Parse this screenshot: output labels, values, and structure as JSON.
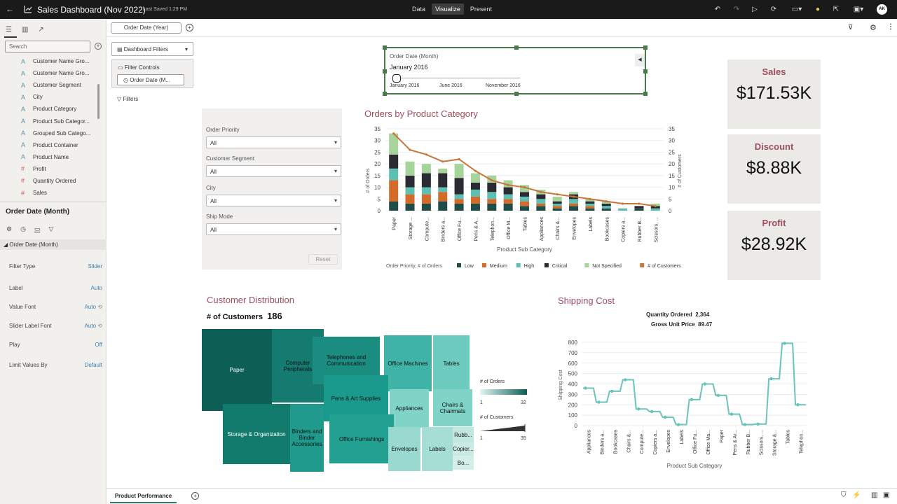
{
  "app": {
    "title": "Sales Dashboard (Nov 2022)",
    "saved": "Last Saved 1:29 PM",
    "modes": [
      "Data",
      "Visualize",
      "Present"
    ],
    "active_mode": "Visualize",
    "user_initials": "AK"
  },
  "left_panel": {
    "search_placeholder": "Search",
    "fields": [
      {
        "type": "A",
        "name": "Customer Name Gro..."
      },
      {
        "type": "A",
        "name": "Customer Name Gro..."
      },
      {
        "type": "A",
        "name": "Customer Segment"
      },
      {
        "type": "A",
        "name": "City"
      },
      {
        "type": "A",
        "name": "Product Category"
      },
      {
        "type": "A",
        "name": "Product Sub Categor..."
      },
      {
        "type": "A",
        "name": "Grouped Sub Catego..."
      },
      {
        "type": "A",
        "name": "Product Container"
      },
      {
        "type": "A",
        "name": "Product Name"
      },
      {
        "type": "#",
        "name": "Profit"
      },
      {
        "type": "#",
        "name": "Quantity Ordered"
      },
      {
        "type": "#",
        "name": "Sales"
      }
    ],
    "properties": {
      "title": "Order Date (Month)",
      "section": "Order Date (Month)",
      "rows": [
        {
          "label": "Filter Type",
          "value": "Slider"
        },
        {
          "label": "Label",
          "value": "Auto"
        },
        {
          "label": "Value Font",
          "value": "Auto"
        },
        {
          "label": "Slider Label Font",
          "value": "Auto"
        },
        {
          "label": "Play",
          "value": "Off"
        },
        {
          "label": "Limit Values By",
          "value": "Default"
        }
      ]
    }
  },
  "canvas": {
    "date_filter": "Order Date (Year)",
    "dashboard_filters": "Dashboard Filters",
    "filter_controls": "Filter Controls",
    "filter_control_item": "Order Date (M...",
    "filters_label": "Filters"
  },
  "slider": {
    "label": "Order Date (Month)",
    "value": "January 2016",
    "ticks": [
      "January 2016",
      "June 2016",
      "November 2016"
    ],
    "position": 0
  },
  "filter_panel": {
    "items": [
      {
        "label": "Order Priority",
        "value": "All"
      },
      {
        "label": "Customer Segment",
        "value": "All"
      },
      {
        "label": "City",
        "value": "All"
      },
      {
        "label": "Ship Mode",
        "value": "All"
      }
    ],
    "reset": "Reset"
  },
  "orders_chart": {
    "title": "Orders by Product Category"
  },
  "kpis": [
    {
      "label": "Sales",
      "value": "$171.53K"
    },
    {
      "label": "Discount",
      "value": "$8.88K"
    },
    {
      "label": "Profit",
      "value": "$28.92K"
    }
  ],
  "customer_distribution": {
    "title": "Customer Distribution",
    "count_label": "# of Customers",
    "count_value": "186",
    "legend": {
      "orders_label": "# of Orders",
      "orders_min": "1",
      "orders_max": "32",
      "customers_label": "# of Customers",
      "customers_min": "1",
      "customers_max": "35"
    },
    "tiles": [
      "Paper",
      "Computer Peripherals",
      "Telephones and Communication",
      "Office Machines",
      "Tables",
      "Pens & Art Supplies",
      "Appliances",
      "Chairs & Chairmats",
      "Storage & Organization",
      "Binders and Binder Accessories",
      "Office Furnishings",
      "Envelopes",
      "Labels",
      "Rubb...",
      "Copier...",
      "Bo..."
    ]
  },
  "shipping": {
    "title": "Shipping Cost",
    "quantity_label": "Quantity Ordered",
    "quantity_value": "2,364",
    "price_label": "Gross Unit Price",
    "price_value": "89.47"
  },
  "bottom": {
    "tab": "Product Performance"
  },
  "chart_data": [
    {
      "type": "bar",
      "title": "Orders by Product Category",
      "xlabel": "Product Sub Category",
      "ylabel": "# of Orders",
      "y2label": "# of Customers",
      "ylim": [
        0,
        35
      ],
      "yticks": [
        0,
        5,
        10,
        15,
        20,
        25,
        30,
        35
      ],
      "categories": [
        "Paper",
        "Storage ...",
        "Compute...",
        "Binders a...",
        "Office Fu...",
        "Pens & A...",
        "Telephon...",
        "Office M...",
        "Tables",
        "Appliances",
        "Chairs &...",
        "Envelopes",
        "Labels",
        "Bookcases",
        "Copiers a...",
        "Rubber B...",
        "Scissors, ..."
      ],
      "legend_title": "Order Priority, # of Orders",
      "series": [
        {
          "name": "Low",
          "color": "#1f4e4a",
          "values": [
            4,
            3,
            3,
            4,
            3,
            3,
            3,
            3,
            2,
            2,
            1,
            2,
            1,
            1,
            0,
            1,
            0
          ]
        },
        {
          "name": "Medium",
          "color": "#d36b2a",
          "values": [
            9,
            4,
            4,
            4,
            2,
            3,
            2,
            2,
            2,
            1,
            1,
            1,
            1,
            0,
            0,
            0,
            0
          ]
        },
        {
          "name": "High",
          "color": "#5ec0b3",
          "values": [
            5,
            3,
            3,
            2,
            2,
            3,
            3,
            2,
            2,
            2,
            1,
            2,
            1,
            1,
            1,
            0,
            1
          ]
        },
        {
          "name": "Critical",
          "color": "#2b2b33",
          "values": [
            6,
            5,
            6,
            6,
            7,
            3,
            4,
            3,
            2,
            2,
            1,
            2,
            1,
            1,
            0,
            1,
            1
          ]
        },
        {
          "name": "Not Specified",
          "color": "#a6d49a",
          "values": [
            9,
            6,
            4,
            2,
            6,
            4,
            3,
            3,
            3,
            2,
            2,
            1,
            1,
            1,
            0,
            0,
            1
          ]
        }
      ],
      "line": {
        "name": "# of Customers",
        "color": "#c7773a",
        "values": [
          33,
          26,
          24,
          21,
          22,
          17,
          13,
          11,
          10,
          8,
          7,
          6,
          5,
          4,
          3,
          3,
          2
        ]
      }
    },
    {
      "type": "line",
      "title": "Shipping Cost",
      "xlabel": "Product Sub Category",
      "ylabel": "Shipping Cost",
      "ylim": [
        0,
        800
      ],
      "yticks": [
        0,
        100,
        200,
        300,
        400,
        500,
        600,
        700,
        800
      ],
      "categories": [
        "Appliances",
        "Binders a...",
        "Bookcases",
        "Chairs &...",
        "Compute...",
        "Copiers a...",
        "Envelopes",
        "Labels",
        "Office Fu...",
        "Office Ma...",
        "Paper",
        "Pens & Ar...",
        "Rubber B...",
        "Scissors, ...",
        "Storage &...",
        "Tables",
        "Telephon..."
      ],
      "values": [
        360,
        225,
        330,
        440,
        160,
        135,
        80,
        10,
        250,
        400,
        290,
        110,
        10,
        15,
        450,
        790,
        200
      ]
    }
  ]
}
